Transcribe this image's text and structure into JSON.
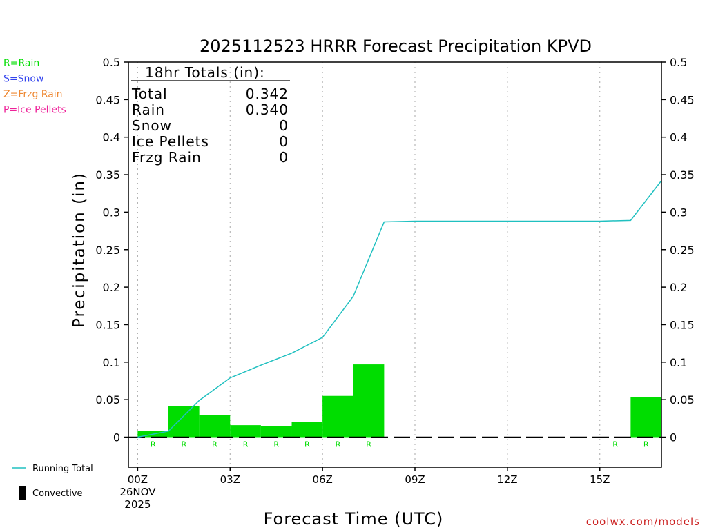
{
  "chart_data": {
    "type": "bar",
    "title": "2025112523 HRRR Forecast Precipitation KPVD",
    "xlabel": "Forecast Time (UTC)",
    "ylabel": "Precipitation (in)",
    "ylim": [
      -0.04,
      0.5
    ],
    "xlim": [
      -0.3,
      17
    ],
    "y_ticks": [
      0,
      0.05,
      0.1,
      0.15,
      0.2,
      0.25,
      0.3,
      0.35,
      0.4,
      0.45,
      0.5
    ],
    "y_tick_labels": [
      "0",
      "0.05",
      "0.1",
      "0.15",
      "0.2",
      "0.25",
      "0.3",
      "0.35",
      "0.4",
      "0.45",
      "0.5"
    ],
    "x_ticks": [
      {
        "hour": 0,
        "label": "00Z",
        "sublabels": [
          "26NOV",
          "2025"
        ]
      },
      {
        "hour": 3,
        "label": "03Z"
      },
      {
        "hour": 6,
        "label": "06Z"
      },
      {
        "hour": 9,
        "label": "09Z"
      },
      {
        "hour": 12,
        "label": "12Z"
      },
      {
        "hour": 15,
        "label": "15Z"
      }
    ],
    "grid": "vertical dotted at tick hours",
    "hourly_precip": {
      "hours": [
        1,
        2,
        3,
        4,
        5,
        6,
        7,
        8,
        9,
        10,
        11,
        12,
        13,
        14,
        15,
        16,
        17
      ],
      "values": [
        0.008,
        0.041,
        0.029,
        0.016,
        0.015,
        0.02,
        0.055,
        0.097,
        0,
        0,
        0,
        0,
        0,
        0,
        0,
        0,
        0.053
      ],
      "ptype": [
        "R",
        "R",
        "R",
        "R",
        "R",
        "R",
        "R",
        "R",
        "",
        "",
        "",
        "",
        "",
        "",
        "",
        "R",
        "R"
      ],
      "color": "#00dd00"
    },
    "running_total": {
      "name": "Running Total",
      "hours": [
        0,
        1,
        2,
        3,
        4,
        5,
        6,
        7,
        8,
        9,
        10,
        11,
        12,
        13,
        14,
        15,
        16,
        17
      ],
      "values": [
        0,
        0.008,
        0.049,
        0.079,
        0.096,
        0.112,
        0.133,
        0.188,
        0.287,
        0.288,
        0.288,
        0.288,
        0.288,
        0.288,
        0.288,
        0.288,
        0.289,
        0.342
      ],
      "color": "#20c0c0"
    },
    "totals_box": {
      "header": "18hr Totals (in):",
      "rows": [
        {
          "label": "Total",
          "value": "0.342"
        },
        {
          "label": "Rain",
          "value": "0.340"
        },
        {
          "label": "Snow",
          "value": "0"
        },
        {
          "label": "Ice Pellets",
          "value": "0"
        },
        {
          "label": "Frzg Rain",
          "value": "0"
        }
      ]
    },
    "ptype_legend": [
      {
        "text": "R=Rain",
        "color": "#00dd00"
      },
      {
        "text": "S=Snow",
        "color": "#3344ee"
      },
      {
        "text": "Z=Frzg Rain",
        "color": "#ee8833"
      },
      {
        "text": "P=Ice Pellets",
        "color": "#ee2299"
      }
    ],
    "series_legend": [
      {
        "text": "Running Total",
        "kind": "line",
        "color": "#20c0c0"
      },
      {
        "text": "Convective",
        "kind": "bar",
        "color": "#000000"
      }
    ],
    "credit": "coolwx.com/models",
    "credit_color": "#cc2222"
  }
}
